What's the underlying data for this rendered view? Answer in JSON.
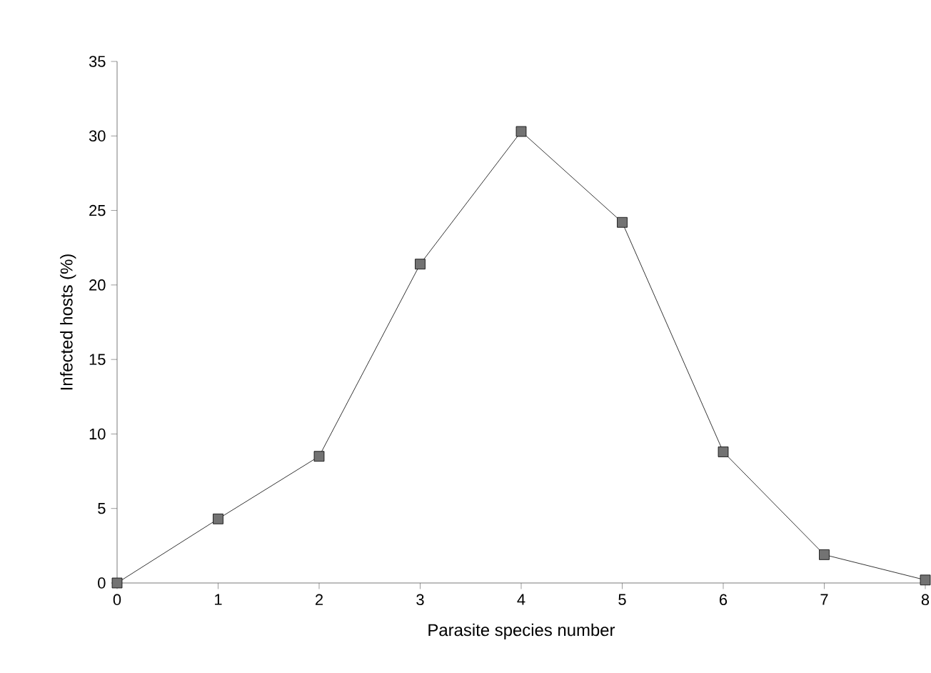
{
  "chart_data": {
    "type": "line",
    "xlabel": "Parasite species number",
    "ylabel": "Infected hosts  (%)",
    "x": [
      0,
      1,
      2,
      3,
      4,
      5,
      6,
      7,
      8
    ],
    "series": [
      {
        "color": "#000000",
        "values": [
          0,
          4.3,
          8.5,
          21.4,
          30.3,
          24.2,
          8.8,
          1.9,
          0.2
        ]
      }
    ],
    "xlim": [
      0,
      8
    ],
    "ylim": [
      0,
      35
    ],
    "xticks": [
      0,
      1,
      2,
      3,
      4,
      5,
      6,
      7,
      8
    ],
    "yticks": [
      0,
      5,
      10,
      15,
      20,
      25,
      30,
      35
    ],
    "marker": "square",
    "line_style": "solid",
    "grid": false
  }
}
